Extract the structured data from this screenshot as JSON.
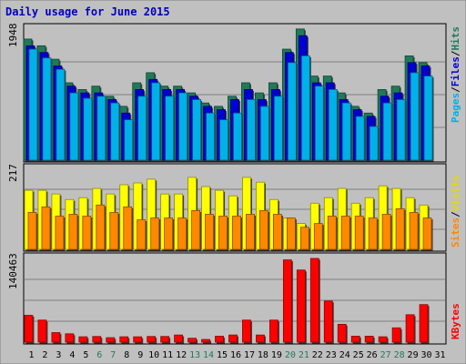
{
  "chart_data": [
    {
      "type": "bar",
      "title": "Daily usage for June 2015",
      "categories": [
        "1",
        "2",
        "3",
        "4",
        "5",
        "6",
        "7",
        "8",
        "9",
        "10",
        "11",
        "12",
        "13",
        "14",
        "15",
        "16",
        "17",
        "18",
        "19",
        "20",
        "21",
        "22",
        "23",
        "24",
        "25",
        "26",
        "27",
        "28",
        "29",
        "30",
        "31"
      ],
      "weekend_days": [
        "6",
        "7",
        "13",
        "14",
        "20",
        "21",
        "27",
        "28"
      ],
      "y_max_label": "1948",
      "grid": true,
      "series": [
        {
          "name": "Hits",
          "color": "#1f7a5a",
          "values": [
            1800,
            1700,
            1500,
            1150,
            1050,
            1100,
            950,
            800,
            1150,
            1300,
            1100,
            1100,
            1000,
            850,
            800,
            950,
            1150,
            1000,
            1150,
            1650,
            1950,
            1250,
            1250,
            1000,
            800,
            700,
            1050,
            1100,
            1550,
            1450,
            0
          ]
        },
        {
          "name": "Files",
          "color": "#0000d0",
          "values": [
            1700,
            1600,
            1400,
            1100,
            1000,
            1000,
            900,
            700,
            1050,
            1200,
            1050,
            1050,
            950,
            800,
            750,
            900,
            1050,
            900,
            1050,
            1600,
            1850,
            1150,
            1150,
            900,
            750,
            650,
            950,
            1000,
            1450,
            1400,
            0
          ]
        },
        {
          "name": "Pages",
          "color": "#00b0e8",
          "values": [
            1650,
            1520,
            1350,
            1000,
            920,
            950,
            850,
            600,
            950,
            1150,
            950,
            1000,
            900,
            700,
            600,
            700,
            900,
            800,
            950,
            1450,
            1550,
            1100,
            1050,
            850,
            650,
            500,
            850,
            900,
            1300,
            1250,
            0
          ]
        }
      ]
    },
    {
      "type": "bar",
      "y_max_label": "217",
      "grid": true,
      "series": [
        {
          "name": "Visits",
          "color": "#ffff00",
          "values": [
            160,
            160,
            150,
            135,
            140,
            165,
            150,
            175,
            180,
            190,
            150,
            150,
            195,
            170,
            160,
            145,
            195,
            182,
            135,
            85,
            70,
            125,
            140,
            165,
            125,
            140,
            172,
            165,
            140,
            120,
            0
          ]
        },
        {
          "name": "Sites",
          "color": "#ff8800",
          "values": [
            100,
            115,
            90,
            95,
            90,
            120,
            100,
            115,
            80,
            85,
            85,
            85,
            105,
            95,
            90,
            90,
            95,
            105,
            95,
            85,
            60,
            70,
            90,
            90,
            90,
            85,
            95,
            110,
            100,
            85,
            0
          ]
        }
      ]
    },
    {
      "type": "bar",
      "y_max_label": "140463",
      "grid": true,
      "series": [
        {
          "name": "KBytes",
          "color": "#ff0000",
          "values": [
            45000,
            37000,
            16000,
            14000,
            9000,
            9500,
            7500,
            9000,
            9000,
            9500,
            9500,
            12000,
            6500,
            4500,
            10000,
            12000,
            37000,
            12000,
            37000,
            138000,
            121000,
            140463,
            69000,
            30000,
            10000,
            10000,
            9000,
            24000,
            46000,
            63000,
            0
          ]
        }
      ]
    }
  ],
  "legend_right": {
    "top": [
      "Pages",
      "/",
      "Files",
      "/",
      "Hits"
    ],
    "middle": [
      "Sites",
      "/",
      "Visits"
    ],
    "bottom": [
      "KBytes"
    ]
  }
}
